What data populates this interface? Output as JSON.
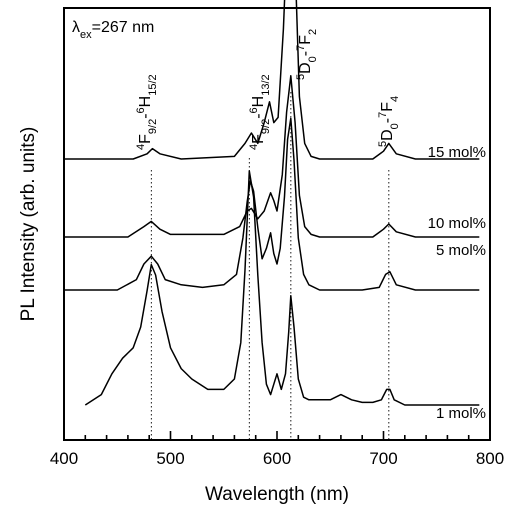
{
  "chart_data": {
    "type": "line",
    "xlabel": "Wavelength (nm)",
    "ylabel": "PL Intensity (arb. units)",
    "xlim": [
      400,
      800
    ],
    "xticks": [
      "400",
      "500",
      "600",
      "700",
      "800"
    ],
    "y_ticks_shown": false,
    "grid": false,
    "excitation": {
      "symbol": "λ",
      "sub": "ex",
      "rest": "=267 nm"
    },
    "transitions": [
      {
        "x": 482,
        "parts": [
          [
            "4",
            "sup"
          ],
          [
            "F",
            ""
          ],
          [
            "9/2",
            "sub"
          ],
          [
            "-",
            ""
          ],
          [
            "6",
            "sup"
          ],
          [
            "H",
            ""
          ],
          [
            "15/2",
            "sub"
          ]
        ]
      },
      {
        "x": 574,
        "parts": [
          [
            "4",
            "sup"
          ],
          [
            "F",
            ""
          ],
          [
            "9/2",
            "sub"
          ],
          [
            "-",
            ""
          ],
          [
            "6",
            "sup"
          ],
          [
            "H",
            ""
          ],
          [
            "13/2",
            "sub"
          ]
        ]
      },
      {
        "x": 613,
        "parts": [
          [
            "5",
            "sup"
          ],
          [
            "D",
            ""
          ],
          [
            "0",
            "sub"
          ],
          [
            "-",
            ""
          ],
          [
            "7",
            "sup"
          ],
          [
            "F",
            ""
          ],
          [
            "2",
            "sub"
          ]
        ]
      },
      {
        "x": 705,
        "parts": [
          [
            "5",
            "sup"
          ],
          [
            "D",
            ""
          ],
          [
            "0",
            "sub"
          ],
          [
            "-",
            ""
          ],
          [
            "7",
            "sup"
          ],
          [
            "F",
            ""
          ],
          [
            "4",
            "sub"
          ]
        ]
      }
    ],
    "series": [
      {
        "name": "1 mol%",
        "x": [
          420,
          435,
          445,
          455,
          465,
          472,
          478,
          482,
          486,
          492,
          500,
          510,
          520,
          535,
          550,
          560,
          566,
          570,
          574,
          578,
          582,
          586,
          590,
          594,
          597,
          600,
          604,
          608,
          611,
          613,
          616,
          620,
          625,
          630,
          640,
          650,
          660,
          670,
          680,
          690,
          698,
          703,
          706,
          710,
          720,
          740,
          760,
          780,
          790
        ],
        "y": [
          0,
          0.02,
          0.06,
          0.09,
          0.11,
          0.15,
          0.22,
          0.27,
          0.25,
          0.18,
          0.11,
          0.07,
          0.05,
          0.03,
          0.03,
          0.05,
          0.12,
          0.26,
          0.45,
          0.4,
          0.25,
          0.12,
          0.04,
          0.02,
          0.04,
          0.06,
          0.03,
          0.06,
          0.14,
          0.21,
          0.15,
          0.05,
          0.015,
          0.01,
          0.01,
          0.01,
          0.02,
          0.01,
          0.005,
          0.005,
          0.01,
          0.03,
          0.03,
          0.01,
          0.0,
          0.0,
          0.0,
          0.0,
          0.0
        ]
      },
      {
        "name": "5 mol%",
        "x": [
          400,
          450,
          468,
          475,
          482,
          488,
          495,
          510,
          530,
          550,
          562,
          568,
          572,
          575,
          578,
          582,
          586,
          590,
          594,
          597,
          600,
          603,
          607,
          610,
          613,
          616,
          620,
          625,
          630,
          640,
          660,
          680,
          696,
          702,
          706,
          712,
          730,
          760,
          790
        ],
        "y": [
          0,
          0,
          0.02,
          0.05,
          0.065,
          0.05,
          0.02,
          0.01,
          0.005,
          0.01,
          0.03,
          0.1,
          0.17,
          0.21,
          0.19,
          0.12,
          0.06,
          0.08,
          0.11,
          0.07,
          0.05,
          0.08,
          0.18,
          0.29,
          0.33,
          0.25,
          0.1,
          0.03,
          0.01,
          0.0,
          0.0,
          0.0,
          0.005,
          0.03,
          0.035,
          0.01,
          0.0,
          0.0,
          0.0
        ]
      },
      {
        "name": "10 mol%",
        "x": [
          400,
          460,
          475,
          482,
          490,
          500,
          550,
          565,
          572,
          576,
          582,
          588,
          594,
          597,
          600,
          605,
          609,
          613,
          617,
          621,
          626,
          632,
          640,
          690,
          700,
          705,
          712,
          730,
          790
        ],
        "y": [
          0,
          0,
          0.02,
          0.03,
          0.015,
          0.005,
          0.005,
          0.02,
          0.05,
          0.055,
          0.035,
          0.05,
          0.085,
          0.07,
          0.05,
          0.12,
          0.24,
          0.31,
          0.22,
          0.08,
          0.02,
          0.005,
          0.0,
          0.0,
          0.015,
          0.025,
          0.01,
          0.0,
          0.0
        ]
      },
      {
        "name": "15 mol%",
        "x": [
          400,
          465,
          478,
          483,
          490,
          510,
          560,
          570,
          576,
          582,
          588,
          593,
          597,
          601,
          606,
          610,
          613,
          617,
          621,
          626,
          632,
          640,
          690,
          700,
          705,
          712,
          730,
          790
        ],
        "y": [
          0,
          0,
          0.01,
          0.02,
          0.01,
          0.0,
          0.005,
          0.03,
          0.05,
          0.03,
          0.07,
          0.11,
          0.07,
          0.08,
          0.25,
          0.45,
          0.51,
          0.38,
          0.12,
          0.03,
          0.005,
          0.0,
          0.0,
          0.015,
          0.03,
          0.01,
          0.0,
          0.0
        ]
      }
    ]
  }
}
